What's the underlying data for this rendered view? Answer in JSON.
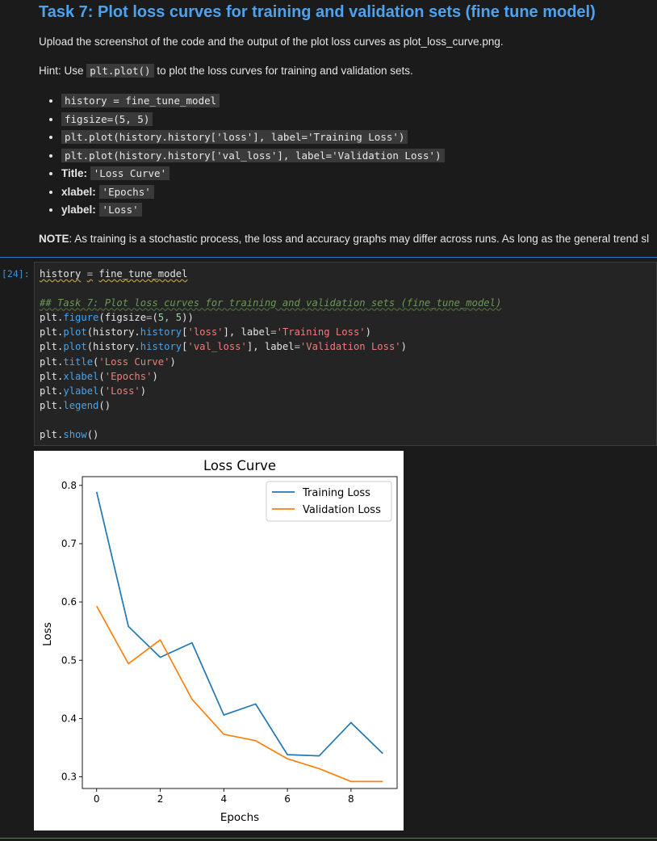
{
  "markdown": {
    "title": "Task 7: Plot loss curves for training and validation sets (fine tune model)",
    "upload_text": "Upload the screenshot of the code and the output of the plot loss curves as plot_loss_curve.png.",
    "hint_prefix": "Hint: Use",
    "hint_code": "plt.plot()",
    "hint_suffix": "to plot the loss curves for training and validation sets.",
    "bullets": [
      {
        "label": "",
        "code": "history = fine_tune_model"
      },
      {
        "label": "",
        "code": "figsize=(5, 5)"
      },
      {
        "label": "",
        "code": "plt.plot(history.history['loss'], label='Training Loss')"
      },
      {
        "label": "",
        "code": "plt.plot(history.history['val_loss'], label='Validation Loss')"
      },
      {
        "label": "Title:",
        "code": "'Loss Curve'"
      },
      {
        "label": "xlabel:",
        "code": "'Epochs'"
      },
      {
        "label": "ylabel:",
        "code": "'Loss'"
      }
    ],
    "note_label": "NOTE",
    "note_text": ": As training is a stochastic process, the loss and accuracy graphs may differ across runs. As long as the general trend sl"
  },
  "cell": {
    "prompt": "[24]:",
    "line1_var": "history",
    "line1_eq": "=",
    "line1_val": "fine_tune_model",
    "comment": "## Task 7: Plot loss curves for training and validation sets (fine_tune_model)",
    "figure_args": "5, 5",
    "loss_key": "'loss'",
    "train_label": "'Training Loss'",
    "val_key": "'val_loss'",
    "val_label": "'Validation Loss'",
    "title_arg": "'Loss Curve'",
    "xlabel_arg": "'Epochs'",
    "ylabel_arg": "'Loss'"
  },
  "chart_data": {
    "type": "line",
    "title": "Loss Curve",
    "xlabel": "Epochs",
    "ylabel": "Loss",
    "x": [
      0,
      1,
      2,
      3,
      4,
      5,
      6,
      7,
      8,
      9
    ],
    "xlim": [
      -0.45,
      9.45
    ],
    "ylim": [
      0.28,
      0.815
    ],
    "xticks": [
      0,
      2,
      4,
      6,
      8
    ],
    "yticks": [
      0.3,
      0.4,
      0.5,
      0.6,
      0.7,
      0.8
    ],
    "legend_position": "upper right",
    "grid": false,
    "series": [
      {
        "name": "Training Loss",
        "color": "#1f77b4",
        "values": [
          0.789,
          0.558,
          0.505,
          0.53,
          0.406,
          0.425,
          0.338,
          0.336,
          0.393,
          0.34
        ]
      },
      {
        "name": "Validation Loss",
        "color": "#ff7f0e",
        "values": [
          0.593,
          0.494,
          0.535,
          0.433,
          0.373,
          0.362,
          0.331,
          0.314,
          0.292,
          0.292
        ]
      }
    ]
  }
}
